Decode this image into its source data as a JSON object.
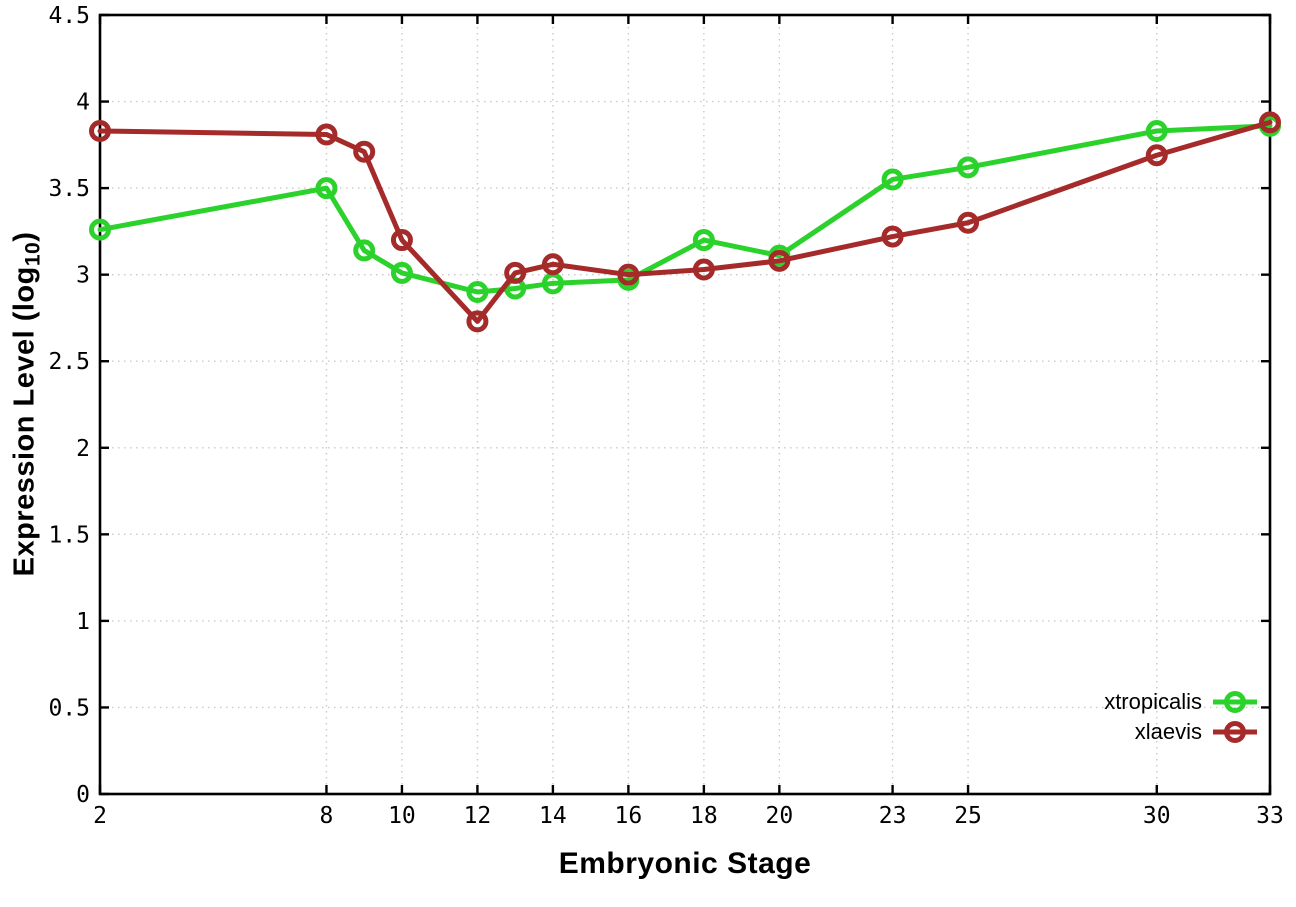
{
  "figure": {
    "background": "#ffffff",
    "xlabel": "Embryonic Stage",
    "ylabel_main": "Expression Level (log",
    "ylabel_sub": "10",
    "ylabel_close": ")"
  },
  "chart_data": {
    "type": "line",
    "title": "",
    "xlabel": "Embryonic Stage",
    "ylabel": "Expression Level (log10)",
    "x": [
      2,
      8,
      9,
      10,
      12,
      13,
      14,
      16,
      18,
      20,
      23,
      25,
      30,
      33
    ],
    "series": [
      {
        "name": "xtropicalis",
        "color": "#2bd22b",
        "marker": "open-circle",
        "values": [
          3.26,
          3.5,
          3.14,
          3.01,
          2.9,
          2.92,
          2.95,
          2.97,
          3.2,
          3.11,
          3.55,
          3.62,
          3.83,
          3.86
        ]
      },
      {
        "name": "xlaevis",
        "color": "#a52a2a",
        "marker": "open-circle",
        "values": [
          3.83,
          3.81,
          3.71,
          3.2,
          2.73,
          3.01,
          3.06,
          3.0,
          3.03,
          3.08,
          3.22,
          3.3,
          3.69,
          3.88
        ]
      }
    ],
    "xticks": [
      2,
      8,
      10,
      12,
      14,
      16,
      18,
      20,
      23,
      25,
      30,
      33
    ],
    "xtick_labels": [
      "2",
      "8",
      "10",
      "12",
      "14",
      "16",
      "18",
      "20",
      "23",
      "25",
      "30",
      "33"
    ],
    "yticks": [
      0,
      0.5,
      1,
      1.5,
      2,
      2.5,
      3,
      3.5,
      4,
      4.5
    ],
    "ytick_labels": [
      "0",
      "0.5",
      "1",
      "1.5",
      "2",
      "2.5",
      "3",
      "3.5",
      "4",
      "4.5"
    ],
    "xlim": [
      2,
      33
    ],
    "ylim": [
      0,
      4.5
    ],
    "grid": true,
    "grid_color": "#c9c9c9",
    "axis_color": "#000000",
    "legend_position": "bottom-right"
  }
}
